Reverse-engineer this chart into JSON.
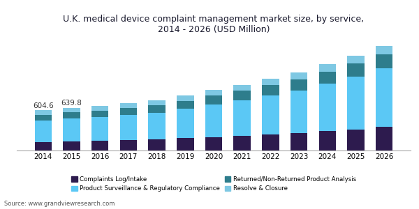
{
  "years": [
    2014,
    2015,
    2016,
    2017,
    2018,
    2019,
    2020,
    2021,
    2022,
    2023,
    2024,
    2025,
    2026
  ],
  "complaints_log": [
    130,
    140,
    148,
    158,
    170,
    185,
    200,
    220,
    240,
    260,
    290,
    320,
    355
  ],
  "product_surveillance": [
    320,
    340,
    355,
    375,
    400,
    440,
    490,
    535,
    590,
    645,
    715,
    790,
    880
  ],
  "returned_product": [
    90,
    95,
    100,
    110,
    115,
    125,
    135,
    145,
    158,
    168,
    185,
    200,
    215
  ],
  "resolve_closure": [
    65,
    65,
    67,
    72,
    75,
    80,
    85,
    90,
    95,
    100,
    108,
    115,
    120
  ],
  "colors": {
    "complaints_log": "#2d1b4e",
    "product_surveillance": "#5bc8f5",
    "returned_product": "#2e7d8c",
    "resolve_closure": "#7ec8e3"
  },
  "title": "U.K. medical device complaint management market size, by service,\n2014 - 2026 (USD Million)",
  "source": "Source: www.grandviewresearch.com",
  "annotations": {
    "2014": "604.6",
    "2015": "639.8"
  },
  "legend_labels": [
    "Complaints Log/Intake",
    "Product Surveillance & Regulatory Compliance",
    "Returned/Non-Returned Product Analysis",
    "Resolve & Closure"
  ],
  "bar_width": 0.6,
  "ylim": [
    0,
    1700
  ],
  "background_color": "#ffffff",
  "title_color": "#1a1a2e",
  "title_fontsize": 9,
  "tick_fontsize": 7.5,
  "annotation_fontsize": 7.5
}
